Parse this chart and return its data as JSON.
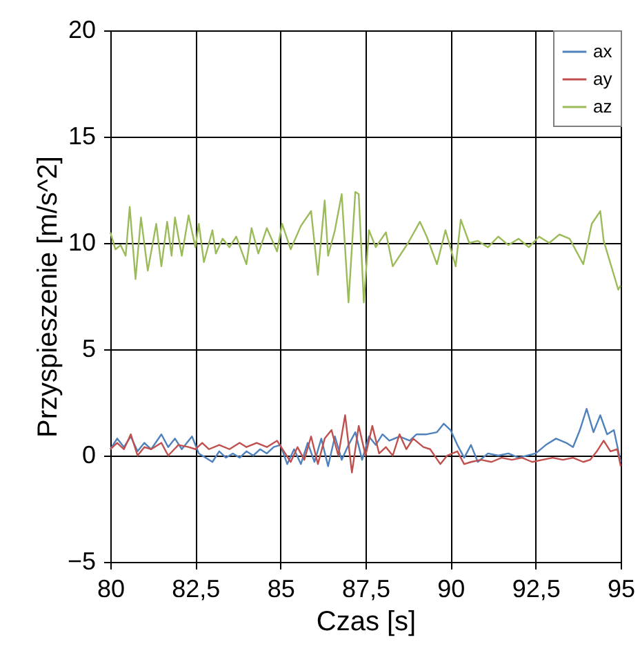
{
  "chart_data": {
    "type": "line",
    "xlabel": "Czas [s]",
    "ylabel": "Przyspieszenie [m/s^2]",
    "xlim": [
      80,
      95
    ],
    "xticks": [
      80,
      {
        "value": 82.5,
        "label": "82,5"
      },
      85,
      {
        "value": 87.5,
        "label": "87,5"
      },
      90,
      {
        "value": 92.5,
        "label": "92,5"
      },
      95
    ],
    "ylim": [
      -5,
      20
    ],
    "yticks": [
      -5,
      0,
      5,
      10,
      15,
      20
    ],
    "grid": true,
    "legend": "top right",
    "line_style": "solid",
    "marker": "none",
    "series": [
      {
        "name": "ax",
        "color": "#4f81bd",
        "x": [
          80,
          80.2,
          80.4,
          80.6,
          80.8,
          81.0,
          81.2,
          81.5,
          81.7,
          81.9,
          82.1,
          82.4,
          82.6,
          82.8,
          83.0,
          83.2,
          83.4,
          83.6,
          83.8,
          84.0,
          84.2,
          84.4,
          84.6,
          84.8,
          85.0,
          85.2,
          85.4,
          85.6,
          85.8,
          86.0,
          86.2,
          86.4,
          86.6,
          86.8,
          87.0,
          87.2,
          87.4,
          87.6,
          87.8,
          88.0,
          88.2,
          88.5,
          88.8,
          89.0,
          89.3,
          89.6,
          89.8,
          90.0,
          90.2,
          90.4,
          90.6,
          90.8,
          91.1,
          91.4,
          91.7,
          92.0,
          92.5,
          92.8,
          93.1,
          93.4,
          93.6,
          93.8,
          94.0,
          94.2,
          94.4,
          94.6,
          94.8,
          95.0
        ],
        "values": [
          0.3,
          0.8,
          0.4,
          0.9,
          0.2,
          0.6,
          0.3,
          1.0,
          0.4,
          0.8,
          0.3,
          0.9,
          0.1,
          -0.1,
          -0.3,
          0.2,
          -0.1,
          0.1,
          -0.1,
          0.2,
          0.0,
          0.3,
          0.1,
          0.4,
          0.5,
          -0.4,
          0.3,
          -0.4,
          0.6,
          -0.3,
          0.8,
          -0.5,
          0.9,
          -0.2,
          0.5,
          1.1,
          -0.2,
          0.9,
          0.5,
          1.0,
          0.7,
          0.9,
          0.7,
          1.0,
          1.0,
          1.1,
          1.5,
          1.2,
          0.5,
          -0.1,
          0.5,
          -0.3,
          0.1,
          0.0,
          0.1,
          -0.1,
          0.1,
          0.5,
          0.8,
          0.6,
          0.4,
          1.2,
          2.2,
          1.1,
          1.9,
          1.0,
          1.2,
          -0.3
        ]
      },
      {
        "name": "ay",
        "color": "#c0504d",
        "x": [
          80,
          80.2,
          80.4,
          80.6,
          80.8,
          81.0,
          81.2,
          81.5,
          81.7,
          82.0,
          82.3,
          82.5,
          82.7,
          82.9,
          83.2,
          83.5,
          83.8,
          84.0,
          84.3,
          84.6,
          84.9,
          85.1,
          85.3,
          85.5,
          85.7,
          85.9,
          86.1,
          86.3,
          86.5,
          86.7,
          86.9,
          87.1,
          87.3,
          87.5,
          87.7,
          87.9,
          88.1,
          88.3,
          88.5,
          88.7,
          88.9,
          89.2,
          89.4,
          89.7,
          89.9,
          90.2,
          90.4,
          90.6,
          90.9,
          91.2,
          91.5,
          91.8,
          92.1,
          92.4,
          92.7,
          93.0,
          93.3,
          93.6,
          93.9,
          94.1,
          94.3,
          94.5,
          94.7,
          94.9,
          95.0
        ],
        "values": [
          0.3,
          0.6,
          0.3,
          1.0,
          0.0,
          0.4,
          0.3,
          0.6,
          0.0,
          0.5,
          0.4,
          0.3,
          0.6,
          0.3,
          0.5,
          0.3,
          0.6,
          0.4,
          0.6,
          0.4,
          0.7,
          0.2,
          -0.3,
          0.4,
          -0.2,
          0.9,
          -0.4,
          0.8,
          1.2,
          0.0,
          1.9,
          -0.8,
          1.4,
          0.0,
          1.4,
          0.1,
          0.4,
          0.0,
          1.0,
          0.3,
          0.8,
          0.4,
          0.3,
          -0.4,
          0.0,
          0.2,
          -0.4,
          -0.3,
          -0.2,
          -0.3,
          -0.1,
          -0.2,
          -0.1,
          -0.3,
          -0.2,
          -0.1,
          -0.2,
          -0.1,
          -0.3,
          -0.2,
          0.2,
          0.7,
          0.2,
          0.3,
          -0.5
        ]
      },
      {
        "name": "az",
        "color": "#9bbb59",
        "x": [
          80,
          80.15,
          80.3,
          80.45,
          80.57,
          80.74,
          80.9,
          81.1,
          81.35,
          81.5,
          81.67,
          81.8,
          81.9,
          82.1,
          82.3,
          82.5,
          82.6,
          82.75,
          83.0,
          83.1,
          83.3,
          83.5,
          83.7,
          84.0,
          84.15,
          84.35,
          84.6,
          84.9,
          85.05,
          85.3,
          85.6,
          85.9,
          86.1,
          86.3,
          86.4,
          86.6,
          86.8,
          87.0,
          87.2,
          87.3,
          87.45,
          87.6,
          87.8,
          88.1,
          88.3,
          88.75,
          89.1,
          89.3,
          89.6,
          89.85,
          90.15,
          90.3,
          90.55,
          90.8,
          91.1,
          91.4,
          91.7,
          92.0,
          92.3,
          92.6,
          92.9,
          93.2,
          93.5,
          93.9,
          94.15,
          94.4,
          94.5,
          94.93,
          95.0
        ],
        "values": [
          10.5,
          9.7,
          9.9,
          9.4,
          11.7,
          8.3,
          11.2,
          8.7,
          10.9,
          8.9,
          11.0,
          9.4,
          11.2,
          9.4,
          11.3,
          9.8,
          10.9,
          9.1,
          10.6,
          9.5,
          10.2,
          9.8,
          10.3,
          9.0,
          10.7,
          9.5,
          10.7,
          9.6,
          10.9,
          9.7,
          10.8,
          11.5,
          8.5,
          12.0,
          9.4,
          10.6,
          12.3,
          7.2,
          12.4,
          12.3,
          7.2,
          10.6,
          9.8,
          10.5,
          8.9,
          10.0,
          11.0,
          10.3,
          9.0,
          10.6,
          8.9,
          11.1,
          10.0,
          10.1,
          9.8,
          10.3,
          9.9,
          10.2,
          9.8,
          10.3,
          10.0,
          10.4,
          10.2,
          9.0,
          10.9,
          11.5,
          10.1,
          7.8,
          8.0
        ]
      }
    ]
  }
}
